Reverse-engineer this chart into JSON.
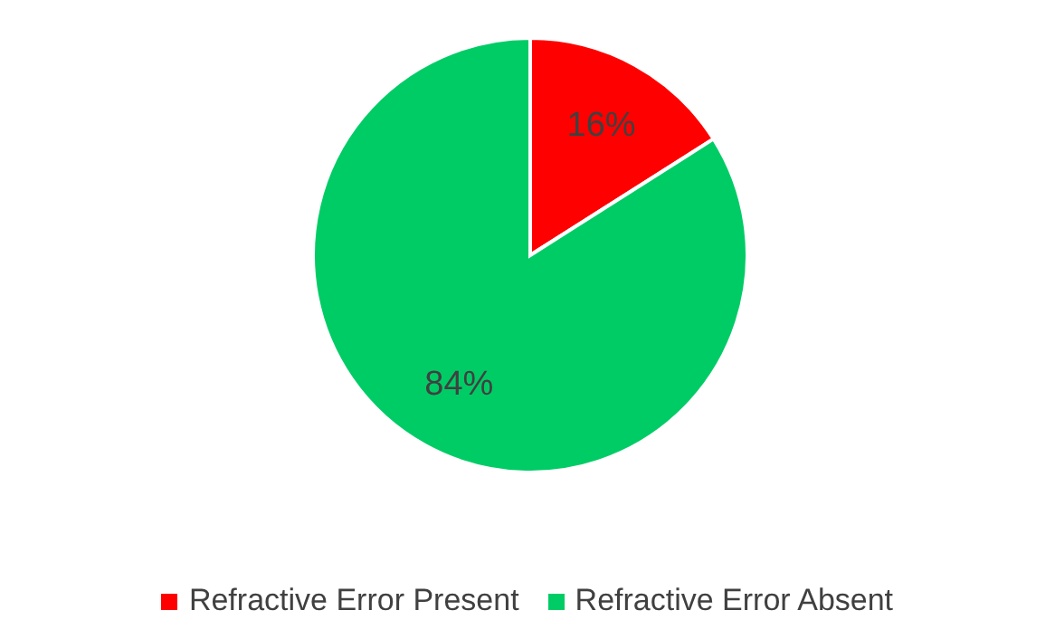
{
  "chart_data": {
    "type": "pie",
    "categories": [
      "Refractive Error Present",
      "Refractive Error Absent"
    ],
    "values": [
      16,
      84
    ],
    "colors": [
      "#ff0000",
      "#00cc66"
    ],
    "value_labels": [
      "16%",
      "84%"
    ],
    "legend": "bottom"
  }
}
